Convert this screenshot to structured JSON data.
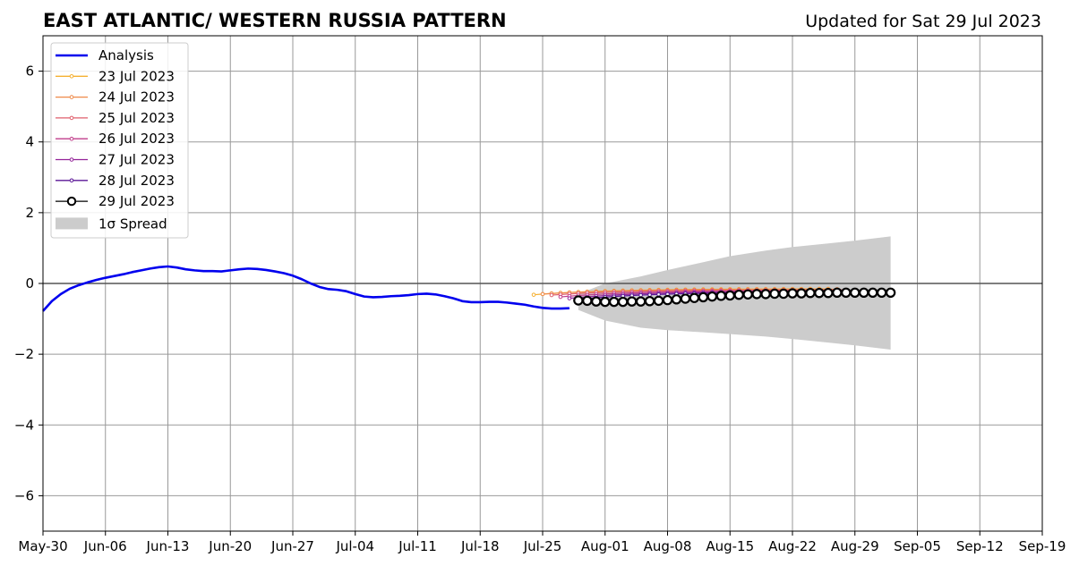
{
  "chart_data": {
    "type": "line",
    "title": "EAST ATLANTIC/ WESTERN RUSSIA PATTERN",
    "subtitle": "Updated for Sat 29 Jul 2023",
    "xlabel": "",
    "ylabel": "",
    "xlim": [
      "2023-05-30",
      "2023-09-19"
    ],
    "ylim": [
      -7,
      7
    ],
    "x_ticks": [
      "May-30",
      "Jun-06",
      "Jun-13",
      "Jun-20",
      "Jun-27",
      "Jul-04",
      "Jul-11",
      "Jul-18",
      "Jul-25",
      "Aug-01",
      "Aug-08",
      "Aug-15",
      "Aug-22",
      "Aug-29",
      "Sep-05",
      "Sep-12",
      "Sep-19"
    ],
    "y_ticks": [
      6,
      4,
      2,
      0,
      -2,
      -4,
      -6
    ],
    "y_tick_labels": [
      "6",
      "4",
      "2",
      "0",
      "−2",
      "−4",
      "−6"
    ],
    "grid": true,
    "legend_position": "top-left",
    "analysis": {
      "name": "Analysis",
      "color": "#0000ee",
      "x": [
        "2023-05-30",
        "2023-05-31",
        "2023-06-01",
        "2023-06-02",
        "2023-06-03",
        "2023-06-04",
        "2023-06-05",
        "2023-06-06",
        "2023-06-07",
        "2023-06-08",
        "2023-06-09",
        "2023-06-10",
        "2023-06-11",
        "2023-06-12",
        "2023-06-13",
        "2023-06-14",
        "2023-06-15",
        "2023-06-16",
        "2023-06-17",
        "2023-06-18",
        "2023-06-19",
        "2023-06-20",
        "2023-06-21",
        "2023-06-22",
        "2023-06-23",
        "2023-06-24",
        "2023-06-25",
        "2023-06-26",
        "2023-06-27",
        "2023-06-28",
        "2023-06-29",
        "2023-06-30",
        "2023-07-01",
        "2023-07-02",
        "2023-07-03",
        "2023-07-04",
        "2023-07-05",
        "2023-07-06",
        "2023-07-07",
        "2023-07-08",
        "2023-07-09",
        "2023-07-10",
        "2023-07-11",
        "2023-07-12",
        "2023-07-13",
        "2023-07-14",
        "2023-07-15",
        "2023-07-16",
        "2023-07-17",
        "2023-07-18",
        "2023-07-19",
        "2023-07-20",
        "2023-07-21",
        "2023-07-22",
        "2023-07-23",
        "2023-07-24",
        "2023-07-25",
        "2023-07-26",
        "2023-07-27",
        "2023-07-28"
      ],
      "y": [
        -0.78,
        -0.5,
        -0.3,
        -0.15,
        -0.05,
        0.03,
        0.1,
        0.16,
        0.21,
        0.26,
        0.32,
        0.37,
        0.42,
        0.46,
        0.48,
        0.45,
        0.4,
        0.37,
        0.35,
        0.35,
        0.34,
        0.37,
        0.4,
        0.42,
        0.41,
        0.38,
        0.34,
        0.29,
        0.22,
        0.12,
        0.0,
        -0.1,
        -0.16,
        -0.18,
        -0.22,
        -0.3,
        -0.37,
        -0.39,
        -0.38,
        -0.36,
        -0.35,
        -0.33,
        -0.3,
        -0.29,
        -0.31,
        -0.36,
        -0.42,
        -0.5,
        -0.53,
        -0.53,
        -0.52,
        -0.52,
        -0.54,
        -0.57,
        -0.6,
        -0.65,
        -0.69,
        -0.71,
        -0.71,
        -0.7
      ]
    },
    "forecasts": [
      {
        "name": "23 Jul 2023",
        "color": "#f5b031",
        "x0": "2023-07-24",
        "start": -0.32,
        "end": -0.15,
        "days": 33
      },
      {
        "name": "24 Jul 2023",
        "color": "#ef8a49",
        "x0": "2023-07-25",
        "start": -0.3,
        "end": -0.16,
        "days": 33
      },
      {
        "name": "25 Jul 2023",
        "color": "#df5f6c",
        "x0": "2023-07-26",
        "start": -0.33,
        "end": -0.18,
        "days": 33
      },
      {
        "name": "26 Jul 2023",
        "color": "#c13d8b",
        "x0": "2023-07-27",
        "start": -0.38,
        "end": -0.2,
        "days": 33
      },
      {
        "name": "27 Jul 2023",
        "color": "#932399",
        "x0": "2023-07-28",
        "start": -0.42,
        "end": -0.22,
        "days": 33
      },
      {
        "name": "28 Jul 2023",
        "color": "#5b1797",
        "x0": "2023-07-29",
        "start": -0.45,
        "end": -0.24,
        "days": 33
      },
      {
        "name": "29 Jul 2023",
        "color": "#000000",
        "x": [
          "2023-07-29",
          "2023-07-30",
          "2023-07-31",
          "2023-08-01",
          "2023-08-02",
          "2023-08-03",
          "2023-08-04",
          "2023-08-05",
          "2023-08-06",
          "2023-08-07",
          "2023-08-08",
          "2023-08-09",
          "2023-08-10",
          "2023-08-11",
          "2023-08-12",
          "2023-08-13",
          "2023-08-14",
          "2023-08-15",
          "2023-08-16",
          "2023-08-17",
          "2023-08-18",
          "2023-08-19",
          "2023-08-20",
          "2023-08-21",
          "2023-08-22",
          "2023-08-23",
          "2023-08-24",
          "2023-08-25",
          "2023-08-26",
          "2023-08-27",
          "2023-08-28",
          "2023-08-29",
          "2023-08-30",
          "2023-08-31",
          "2023-09-01",
          "2023-09-02"
        ],
        "y": [
          -0.48,
          -0.49,
          -0.51,
          -0.52,
          -0.52,
          -0.52,
          -0.51,
          -0.51,
          -0.5,
          -0.49,
          -0.47,
          -0.45,
          -0.43,
          -0.41,
          -0.39,
          -0.37,
          -0.35,
          -0.34,
          -0.32,
          -0.31,
          -0.3,
          -0.3,
          -0.29,
          -0.29,
          -0.28,
          -0.28,
          -0.27,
          -0.27,
          -0.27,
          -0.26,
          -0.26,
          -0.26,
          -0.26,
          -0.26,
          -0.26,
          -0.26
        ]
      }
    ],
    "spread": {
      "name": "1σ Spread",
      "color": "#cccccc",
      "x": [
        "2023-07-29",
        "2023-08-01",
        "2023-08-05",
        "2023-08-08",
        "2023-08-12",
        "2023-08-15",
        "2023-08-19",
        "2023-08-22",
        "2023-08-26",
        "2023-08-29",
        "2023-09-02"
      ],
      "upper": [
        -0.3,
        0.0,
        0.2,
        0.38,
        0.6,
        0.77,
        0.93,
        1.03,
        1.13,
        1.21,
        1.33
      ],
      "lower": [
        -0.75,
        -1.05,
        -1.25,
        -1.32,
        -1.38,
        -1.43,
        -1.5,
        -1.57,
        -1.67,
        -1.75,
        -1.87
      ]
    }
  }
}
